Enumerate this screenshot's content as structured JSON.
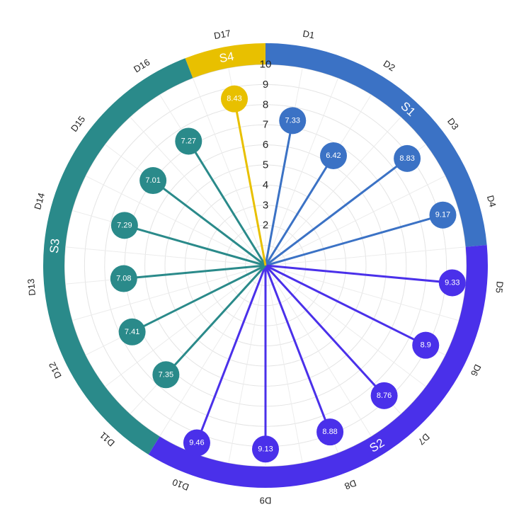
{
  "chart_data": {
    "type": "radial-lollipop",
    "r_range": [
      0,
      10
    ],
    "r_ticks": [
      "2",
      "3",
      "4",
      "5",
      "6",
      "7",
      "8",
      "9",
      "10"
    ],
    "grid": true,
    "groups": [
      {
        "name": "S1",
        "color": "#3b72c5"
      },
      {
        "name": "S2",
        "color": "#4a30ea"
      },
      {
        "name": "S3",
        "color": "#2a8a8a"
      },
      {
        "name": "S4",
        "color": "#e8c000"
      }
    ],
    "points": [
      {
        "label": "D1",
        "value": 7.33,
        "value_label": "7.33",
        "group": 0
      },
      {
        "label": "D2",
        "value": 6.42,
        "value_label": "6.42",
        "group": 0
      },
      {
        "label": "D3",
        "value": 8.83,
        "value_label": "8.83",
        "group": 0
      },
      {
        "label": "D4",
        "value": 9.17,
        "value_label": "9.17",
        "group": 0
      },
      {
        "label": "D5",
        "value": 9.33,
        "value_label": "9.33",
        "group": 1
      },
      {
        "label": "D6",
        "value": 8.9,
        "value_label": "8.9",
        "group": 1
      },
      {
        "label": "D7",
        "value": 8.76,
        "value_label": "8.76",
        "group": 1
      },
      {
        "label": "D8",
        "value": 8.88,
        "value_label": "8.88",
        "group": 1
      },
      {
        "label": "D9",
        "value": 9.13,
        "value_label": "9.13",
        "group": 1
      },
      {
        "label": "D10",
        "value": 9.46,
        "value_label": "9.46",
        "group": 1
      },
      {
        "label": "D11",
        "value": 7.35,
        "value_label": "7.35",
        "group": 2
      },
      {
        "label": "D12",
        "value": 7.41,
        "value_label": "7.41",
        "group": 2
      },
      {
        "label": "D13",
        "value": 7.08,
        "value_label": "7.08",
        "group": 2
      },
      {
        "label": "D14",
        "value": 7.29,
        "value_label": "7.29",
        "group": 2
      },
      {
        "label": "D15",
        "value": 7.01,
        "value_label": "7.01",
        "group": 2
      },
      {
        "label": "D16",
        "value": 7.27,
        "value_label": "7.27",
        "group": 2
      },
      {
        "label": "D17",
        "value": 8.43,
        "value_label": "8.43",
        "group": 3
      }
    ]
  }
}
